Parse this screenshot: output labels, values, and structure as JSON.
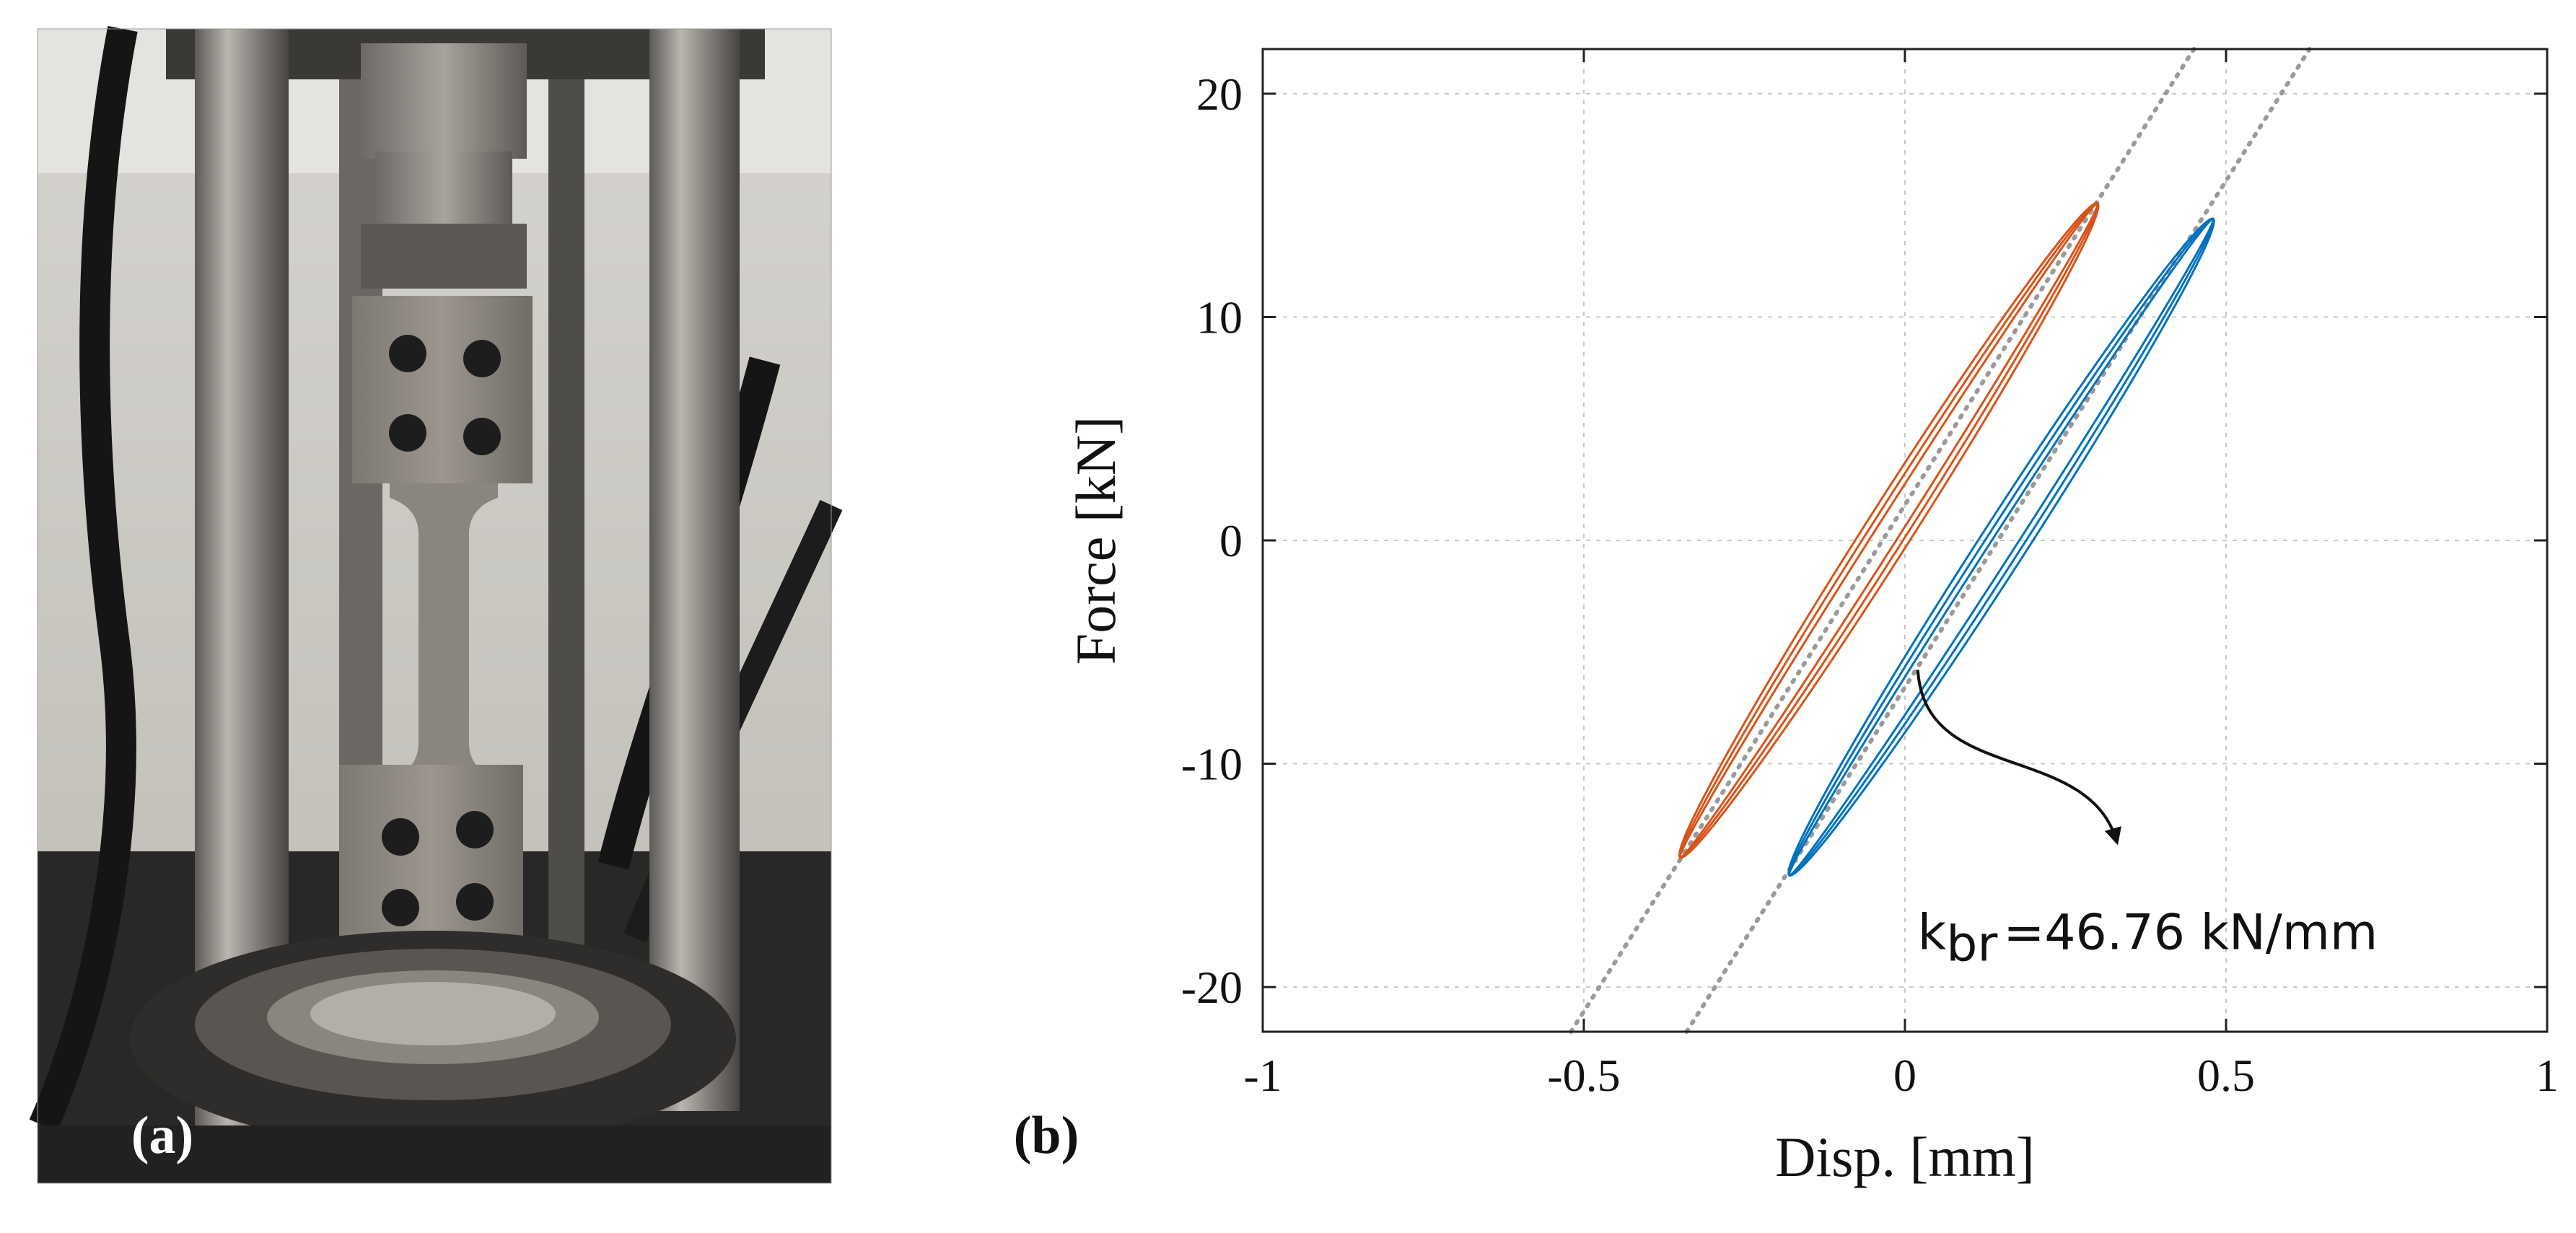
{
  "panels": {
    "a_label": "(a)",
    "b_label": "(b)",
    "photo_description_icon": "test-rig-photo"
  },
  "colors": {
    "series1": "#d95319",
    "series2": "#0072bd",
    "fitline": "#9a9a9a",
    "grid": "#c8c8c8"
  },
  "chart_data": {
    "type": "line",
    "title": "",
    "xlabel": "Disp. [mm]",
    "ylabel": "Force [kN]",
    "xlim": [
      -1,
      1
    ],
    "ylim": [
      -22,
      22
    ],
    "xticks": [
      -1,
      -0.5,
      0,
      0.5,
      1
    ],
    "xtick_labels": [
      "-1",
      "-0.5",
      "0",
      "0.5",
      "1"
    ],
    "yticks": [
      -20,
      -10,
      0,
      10,
      20
    ],
    "ytick_labels": [
      "-20",
      "-10",
      "0",
      "10",
      "20"
    ],
    "grid": true,
    "series": [
      {
        "name": "hysteresis-orange",
        "color": "#d95319",
        "x_range": [
          -0.35,
          0.3
        ],
        "y_range": [
          -14.2,
          15.1
        ]
      },
      {
        "name": "hysteresis-blue",
        "color": "#0072bd",
        "x_range": [
          -0.18,
          0.48
        ],
        "y_range": [
          -15.0,
          14.4
        ]
      }
    ],
    "fit_lines": [
      {
        "name": "fit-orange",
        "x": [
          -0.52,
          0.45
        ],
        "y": [
          -22,
          22
        ]
      },
      {
        "name": "fit-blue",
        "x": [
          -0.34,
          0.63
        ],
        "y": [
          -22,
          22
        ]
      }
    ],
    "annotation": {
      "main": "k",
      "subscript": "br",
      "value": "=46.76 kN/mm",
      "stiffness_kN_per_mm": 46.76,
      "arrow_from": [
        0.02,
        -5.8
      ],
      "arrow_to": [
        0.33,
        -13.5
      ],
      "text_at": [
        0.02,
        -18.3
      ]
    }
  }
}
